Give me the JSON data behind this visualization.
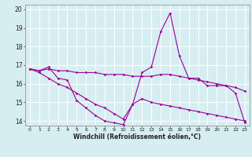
{
  "title": "",
  "xlabel": "Windchill (Refroidissement éolien,°C)",
  "x": [
    0,
    1,
    2,
    3,
    4,
    5,
    6,
    7,
    8,
    9,
    10,
    11,
    12,
    13,
    14,
    15,
    16,
    17,
    18,
    19,
    20,
    21,
    22,
    23
  ],
  "line1": [
    16.8,
    16.7,
    16.9,
    16.3,
    16.2,
    15.1,
    14.7,
    14.3,
    14.0,
    13.9,
    13.8,
    14.9,
    16.6,
    16.9,
    18.8,
    19.8,
    17.5,
    16.3,
    16.3,
    15.9,
    15.9,
    15.9,
    15.5,
    13.9
  ],
  "line2": [
    16.8,
    16.7,
    16.8,
    16.7,
    16.7,
    16.6,
    16.6,
    16.6,
    16.5,
    16.5,
    16.5,
    16.4,
    16.4,
    16.4,
    16.5,
    16.5,
    16.4,
    16.3,
    16.2,
    16.1,
    16.0,
    15.9,
    15.8,
    15.6
  ],
  "line3": [
    16.8,
    16.6,
    16.3,
    16.0,
    15.8,
    15.5,
    15.2,
    14.9,
    14.7,
    14.4,
    14.1,
    14.9,
    15.2,
    15.0,
    14.9,
    14.8,
    14.7,
    14.6,
    14.5,
    14.4,
    14.3,
    14.2,
    14.1,
    14.0
  ],
  "line_color": "#990099",
  "bg_color": "#d6eef2",
  "grid_color": "#ffffff",
  "ylim": [
    13.75,
    20.25
  ],
  "yticks": [
    14,
    15,
    16,
    17,
    18,
    19,
    20
  ],
  "xticks": [
    0,
    1,
    2,
    3,
    4,
    5,
    6,
    7,
    8,
    9,
    10,
    11,
    12,
    13,
    14,
    15,
    16,
    17,
    18,
    19,
    20,
    21,
    22,
    23
  ]
}
